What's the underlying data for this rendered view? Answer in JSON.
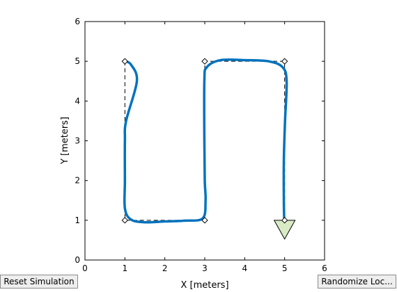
{
  "buttons": {
    "reset_label": "Reset Simulation",
    "randomize_label": "Randomize Loc..."
  },
  "colors": {
    "path": "#0072bd",
    "waypoint_line": "#000000",
    "arrow_fill": "#d9ebc4",
    "axes": "#000000"
  },
  "chart_data": {
    "type": "line",
    "xlabel": "X [meters]",
    "ylabel": "Y [meters]",
    "xlim": [
      0,
      6
    ],
    "ylim": [
      0,
      6
    ],
    "xticks": [
      "0",
      "1",
      "2",
      "3",
      "4",
      "5",
      "6"
    ],
    "yticks": [
      "0",
      "1",
      "2",
      "3",
      "4",
      "5",
      "6"
    ],
    "grid": false,
    "waypoints": [
      [
        1,
        5
      ],
      [
        1,
        1
      ],
      [
        3,
        1
      ],
      [
        3,
        5
      ],
      [
        5,
        5
      ],
      [
        5,
        1
      ]
    ],
    "trajectory": [
      [
        1.0,
        5.0
      ],
      [
        1.15,
        4.92
      ],
      [
        1.3,
        4.5
      ],
      [
        1.03,
        3.5
      ],
      [
        1.0,
        3.0
      ],
      [
        1.0,
        2.0
      ],
      [
        1.0,
        1.3
      ],
      [
        1.15,
        1.02
      ],
      [
        1.5,
        0.95
      ],
      [
        2.0,
        0.97
      ],
      [
        2.5,
        0.99
      ],
      [
        2.95,
        1.05
      ],
      [
        3.02,
        1.5
      ],
      [
        3.0,
        2.0
      ],
      [
        2.99,
        3.0
      ],
      [
        2.99,
        4.5
      ],
      [
        3.05,
        4.85
      ],
      [
        3.4,
        5.03
      ],
      [
        4.0,
        5.03
      ],
      [
        4.6,
        5.0
      ],
      [
        4.95,
        4.85
      ],
      [
        5.05,
        4.5
      ],
      [
        5.01,
        3.5
      ],
      [
        4.98,
        2.5
      ],
      [
        4.98,
        1.5
      ],
      [
        4.99,
        1.0
      ]
    ],
    "vehicle": {
      "x": 5.0,
      "y": 1.0,
      "heading_deg": -90
    }
  }
}
